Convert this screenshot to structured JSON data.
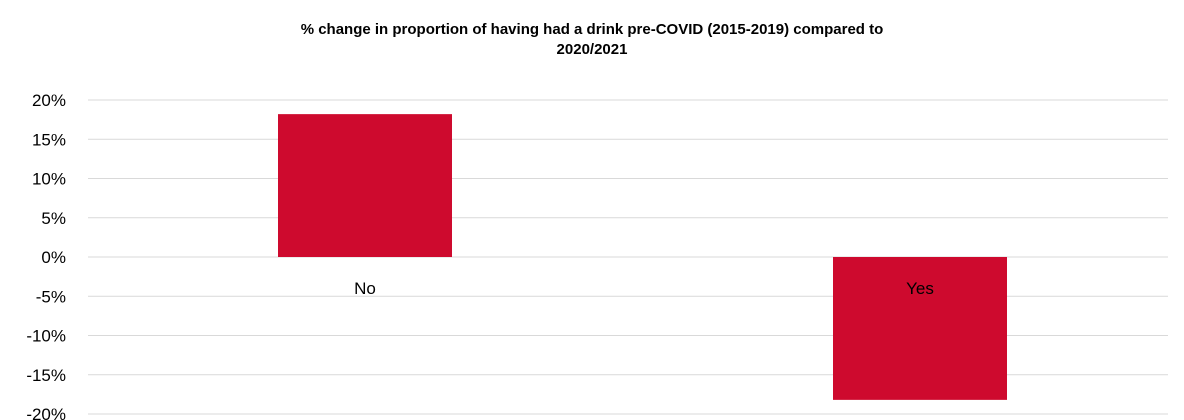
{
  "chart_data": {
    "type": "bar",
    "title_lines": [
      "% change in proportion of having had a drink pre-COVID (2015-2019) compared to",
      "2020/2021"
    ],
    "categories": [
      "No",
      "Yes"
    ],
    "values": [
      18.2,
      -18.2
    ],
    "ylim": [
      -20,
      20
    ],
    "y_ticks": [
      20,
      15,
      10,
      5,
      0,
      -5,
      -10,
      -15,
      -20
    ],
    "y_tick_labels": [
      "20%",
      "15%",
      "10%",
      "5%",
      "0%",
      "-5%",
      "-10%",
      "-15%",
      "-20%"
    ],
    "grid": true,
    "legend": "none",
    "bar_color": "#CE0A2E",
    "grid_color": "#D9D9D9"
  }
}
